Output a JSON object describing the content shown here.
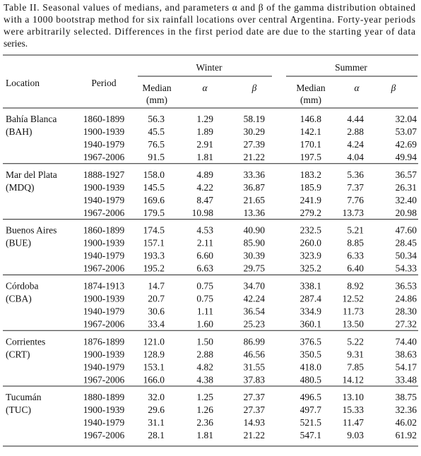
{
  "caption": [
    "Table II. Seasonal values of medians, and parameters α and β of the gamma distribution obtained",
    "with a 1000 bootstrap method for six rainfall locations over central Argentina. Forty-year periods",
    "were arbitrarily selected. Differences in the first period date are due to the starting year of data",
    "series."
  ],
  "header": {
    "location": "Location",
    "period": "Period",
    "groups": [
      {
        "title": "Winter",
        "columns": [
          {
            "label": "Median",
            "unit": "(mm)"
          },
          {
            "label": "α"
          },
          {
            "label": "β"
          }
        ]
      },
      {
        "title": "Summer",
        "columns": [
          {
            "label": "Median",
            "unit": "(mm)"
          },
          {
            "label": "α"
          },
          {
            "label": "β"
          }
        ]
      }
    ]
  },
  "sites": [
    {
      "name": "Bahía Blanca",
      "code": "(BAH)",
      "rows": [
        [
          "1860-1899",
          "56.3",
          "1.29",
          "58.19",
          "146.8",
          "4.44",
          "32.04"
        ],
        [
          "1900-1939",
          "45.5",
          "1.89",
          "30.29",
          "142.1",
          "2.88",
          "53.07"
        ],
        [
          "1940-1979",
          "76.5",
          "2.91",
          "27.39",
          "170.1",
          "4.24",
          "42.69"
        ],
        [
          "1967-2006",
          "91.5",
          "1.81",
          "21.22",
          "197.5",
          "4.04",
          "49.94"
        ]
      ]
    },
    {
      "name": "Mar del Plata",
      "code": "(MDQ)",
      "rows": [
        [
          "1888-1927",
          "158.0",
          "4.89",
          "33.36",
          "183.2",
          "5.36",
          "36.57"
        ],
        [
          "1900-1939",
          "145.5",
          "4.22",
          "36.87",
          "185.9",
          "7.37",
          "26.31"
        ],
        [
          "1940-1979",
          "169.6",
          "8.47",
          "21.65",
          "241.9",
          "7.76",
          "32.40"
        ],
        [
          "1967-2006",
          "179.5",
          "10.98",
          "13.36",
          "279.2",
          "13.73",
          "20.98"
        ]
      ]
    },
    {
      "name": "Buenos Aires",
      "code": "(BUE)",
      "rows": [
        [
          "1860-1899",
          "174.5",
          "4.53",
          "40.90",
          "232.5",
          "5.21",
          "47.60"
        ],
        [
          "1900-1939",
          "157.1",
          "2.11",
          "85.90",
          "260.0",
          "8.85",
          "28.45"
        ],
        [
          "1940-1979",
          "193.3",
          "6.60",
          "30.39",
          "323.9",
          "6.33",
          "50.34"
        ],
        [
          "1967-2006",
          "195.2",
          "6.63",
          "29.75",
          "325.2",
          "6.40",
          "54.33"
        ]
      ]
    },
    {
      "name": "Córdoba",
      "code": "(CBA)",
      "rows": [
        [
          "1874-1913",
          "14.7",
          "0.75",
          "34.70",
          "338.1",
          "8.92",
          "36.53"
        ],
        [
          "1900-1939",
          "20.7",
          "0.75",
          "42.24",
          "287.4",
          "12.52",
          "24.86"
        ],
        [
          "1940-1979",
          "30.6",
          "1.11",
          "36.54",
          "334.9",
          "11.73",
          "28.30"
        ],
        [
          "1967-2006",
          "33.4",
          "1.60",
          "25.23",
          "360.1",
          "13.50",
          "27.32"
        ]
      ]
    },
    {
      "name": "Corrientes",
      "code": "(CRT)",
      "rows": [
        [
          "1876-1899",
          "121.0",
          "1.50",
          "86.99",
          "376.5",
          "5.22",
          "74.40"
        ],
        [
          "1900-1939",
          "128.9",
          "2.88",
          "46.56",
          "350.5",
          "9.31",
          "38.63"
        ],
        [
          "1940-1979",
          "153.1",
          "4.82",
          "31.55",
          "418.0",
          "7.85",
          "54.17"
        ],
        [
          "1967-2006",
          "166.0",
          "4.38",
          "37.83",
          "480.5",
          "14.12",
          "33.48"
        ]
      ]
    },
    {
      "name": "Tucumán",
      "code": "(TUC)",
      "rows": [
        [
          "1880-1899",
          "32.0",
          "1.25",
          "27.37",
          "496.5",
          "13.10",
          "38.75"
        ],
        [
          "1900-1939",
          "29.6",
          "1.26",
          "27.37",
          "497.7",
          "15.33",
          "32.36"
        ],
        [
          "1940-1979",
          "31.1",
          "2.36",
          "14.93",
          "521.5",
          "11.47",
          "46.02"
        ],
        [
          "1967-2006",
          "28.1",
          "1.81",
          "21.22",
          "547.1",
          "9.03",
          "61.92"
        ]
      ]
    }
  ]
}
